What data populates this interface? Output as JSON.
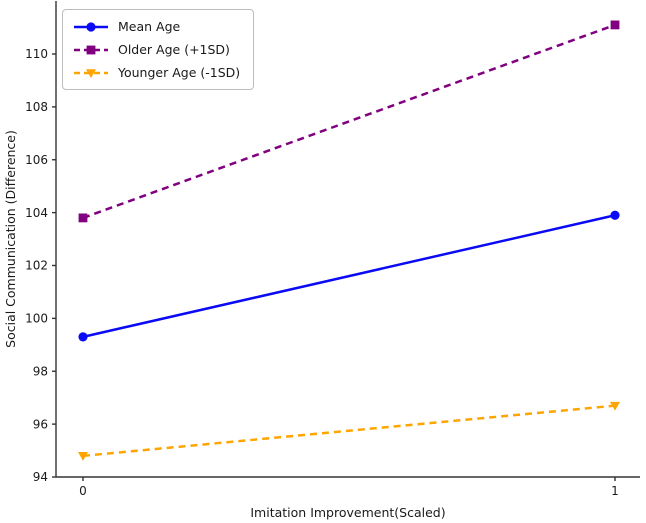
{
  "figure": {
    "background": "#ffffff",
    "axis_color": "#333333",
    "text_color": "#1a1a1a",
    "legend_border_color": "#bdbdbd"
  },
  "chart_data": {
    "type": "line",
    "title": "",
    "xlabel": "Imitation Improvement(Scaled)",
    "ylabel": "Social Communication (Difference)",
    "x": [
      0,
      1
    ],
    "xticks": [
      "0",
      "1"
    ],
    "yticks": [
      94,
      96,
      98,
      100,
      102,
      104,
      106,
      108,
      110
    ],
    "xlim": [
      -0.05,
      1.05
    ],
    "ylim": [
      94,
      112
    ],
    "grid": false,
    "legend_position": "upper-left",
    "series": [
      {
        "name": "Mean Age",
        "color": "#0a0af5",
        "line_style": "solid",
        "marker": "circle",
        "values": [
          99.3,
          103.9
        ]
      },
      {
        "name": "Older Age (+1SD)",
        "color": "#800080",
        "line_style": "dashed",
        "marker": "square",
        "values": [
          103.8,
          111.1
        ]
      },
      {
        "name": "Younger Age (-1SD)",
        "color": "#ffa500",
        "line_style": "dashed",
        "marker": "triangle-down",
        "values": [
          94.8,
          96.7
        ]
      }
    ]
  }
}
